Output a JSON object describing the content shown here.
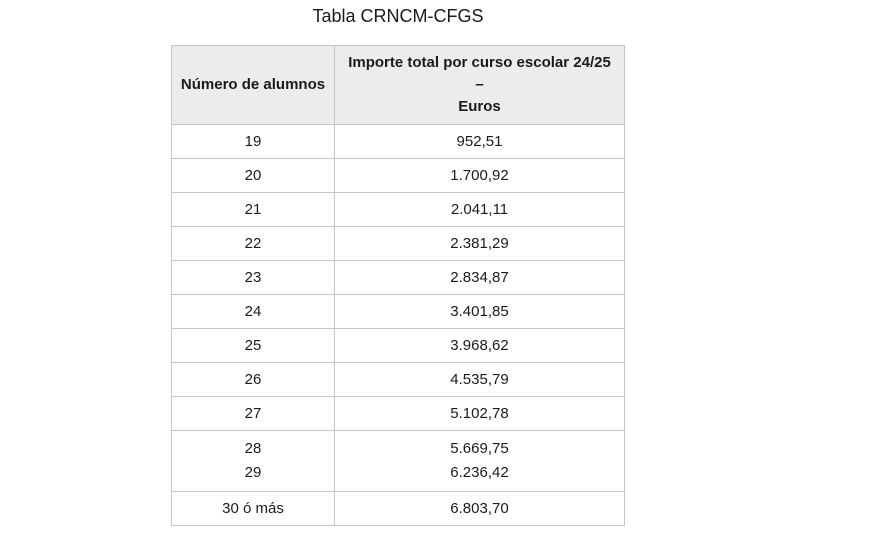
{
  "title": "Tabla CRNCM-CFGS",
  "colors": {
    "header_bg": "#ececec",
    "border": "#c6c6c6",
    "text": "#1b1b1b"
  },
  "table": {
    "headers": {
      "alumnos": "Número de alumnos",
      "importe_lines": [
        "Importe total por curso escolar 24/25",
        "–",
        "Euros"
      ]
    },
    "rows": [
      {
        "alumnos": [
          "19"
        ],
        "importe": [
          "952,51"
        ]
      },
      {
        "alumnos": [
          "20"
        ],
        "importe": [
          "1.700,92"
        ]
      },
      {
        "alumnos": [
          "21"
        ],
        "importe": [
          "2.041,11"
        ]
      },
      {
        "alumnos": [
          "22"
        ],
        "importe": [
          "2.381,29"
        ]
      },
      {
        "alumnos": [
          "23"
        ],
        "importe": [
          "2.834,87"
        ]
      },
      {
        "alumnos": [
          "24"
        ],
        "importe": [
          "3.401,85"
        ]
      },
      {
        "alumnos": [
          "25"
        ],
        "importe": [
          "3.968,62"
        ]
      },
      {
        "alumnos": [
          "26"
        ],
        "importe": [
          "4.535,79"
        ]
      },
      {
        "alumnos": [
          "27"
        ],
        "importe": [
          "5.102,78"
        ]
      },
      {
        "alumnos": [
          "28",
          "29"
        ],
        "importe": [
          "5.669,75",
          "6.236,42"
        ]
      },
      {
        "alumnos": [
          "30 ó más"
        ],
        "importe": [
          "6.803,70"
        ]
      }
    ]
  }
}
